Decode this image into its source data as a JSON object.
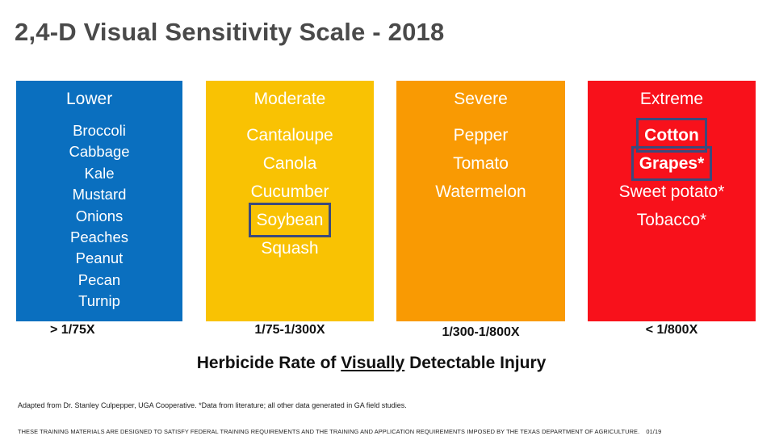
{
  "title": "2,4-D Visual Sensitivity Scale - 2018",
  "columns": [
    {
      "header": "Lower",
      "color": "#0a6fbf",
      "items": [
        "Broccoli",
        "Cabbage",
        "Kale",
        "Mustard",
        "Onions",
        "Peaches",
        "Peanut",
        "Pecan",
        "Turnip"
      ],
      "rate": "> 1/75X"
    },
    {
      "header": "Moderate",
      "color": "#f9c203",
      "items": [
        "Cantaloupe",
        "Canola",
        "Cucumber",
        "Soybean",
        "Squash"
      ],
      "rate": "1/75-1/300X"
    },
    {
      "header": "Severe",
      "color": "#f99a03",
      "items": [
        "Pepper",
        "Tomato",
        "Watermelon"
      ],
      "rate": "1/300-1/800X"
    },
    {
      "header": "Extreme",
      "color": "#f8111b",
      "items": [
        "Cotton",
        "Grapes*",
        "Sweet potato*",
        "Tobacco*"
      ],
      "rate": "< 1/800X"
    }
  ],
  "footer_label": {
    "before": "Herbicide Rate of ",
    "underlined": "Visually",
    "after": " Detectable Injury"
  },
  "note": "Adapted from Dr. Stanley Culpepper, UGA Cooperative. *Data from literature; all other data generated in GA field studies.",
  "disclaimer": "THESE TRAINING MATERIALS ARE DESIGNED TO SATISFY FEDERAL TRAINING REQUIREMENTS AND THE TRAINING AND APPLICATION REQUIREMENTS IMPOSED BY THE TEXAS DEPARTMENT OF AGRICULTURE.",
  "page_number": "01/19"
}
